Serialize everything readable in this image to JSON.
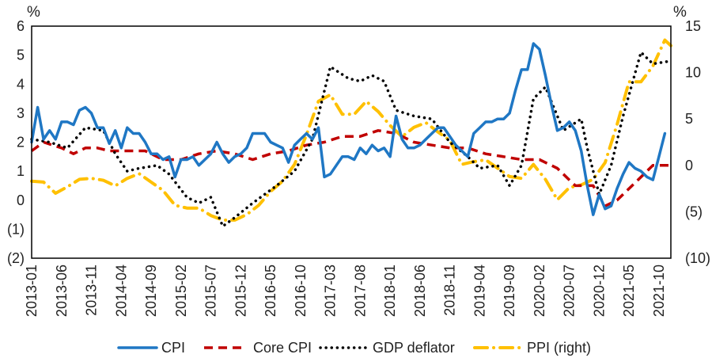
{
  "chart_data": {
    "type": "line",
    "left_unit": "%",
    "right_unit": "%",
    "y_left": {
      "range": [
        -2,
        6
      ],
      "ticks": [
        {
          "value": -2,
          "label": "(2)",
          "color": "#cc0000"
        },
        {
          "value": -1,
          "label": "(1)",
          "color": "#cc0000"
        },
        {
          "value": 0,
          "label": "0",
          "color": "#222222"
        },
        {
          "value": 1,
          "label": "1",
          "color": "#222222"
        },
        {
          "value": 2,
          "label": "2",
          "color": "#222222"
        },
        {
          "value": 3,
          "label": "3",
          "color": "#222222"
        },
        {
          "value": 4,
          "label": "4",
          "color": "#222222"
        },
        {
          "value": 5,
          "label": "5",
          "color": "#222222"
        },
        {
          "value": 6,
          "label": "6",
          "color": "#222222"
        }
      ]
    },
    "y_right": {
      "range": [
        -10,
        15
      ],
      "ticks": [
        {
          "value": -10,
          "label": "(10)",
          "color": "#cc0000"
        },
        {
          "value": -5,
          "label": "(5)",
          "color": "#cc0000"
        },
        {
          "value": 0,
          "label": "0",
          "color": "#222222"
        },
        {
          "value": 5,
          "label": "5",
          "color": "#222222"
        },
        {
          "value": 10,
          "label": "10",
          "color": "#222222"
        },
        {
          "value": 15,
          "label": "15",
          "color": "#222222"
        }
      ]
    },
    "x_range": [
      "2013-01",
      "2021-12"
    ],
    "x_tick_labels": [
      "2013-01",
      "2013-06",
      "2013-11",
      "2014-04",
      "2014-09",
      "2015-02",
      "2015-07",
      "2015-12",
      "2016-05",
      "2016-10",
      "2017-03",
      "2017-08",
      "2018-01",
      "2018-06",
      "2018-11",
      "2019-04",
      "2019-09",
      "2020-02",
      "2020-07",
      "2020-12",
      "2021-05",
      "2021-10"
    ],
    "grid": false,
    "legend_position": "bottom",
    "series": [
      {
        "name": "CPI",
        "axis": "left",
        "color": "#1f77c4",
        "style": "solid",
        "points": [
          [
            "2013-01",
            2.0
          ],
          [
            "2013-02",
            3.2
          ],
          [
            "2013-03",
            2.1
          ],
          [
            "2013-04",
            2.4
          ],
          [
            "2013-05",
            2.1
          ],
          [
            "2013-06",
            2.7
          ],
          [
            "2013-07",
            2.7
          ],
          [
            "2013-08",
            2.6
          ],
          [
            "2013-09",
            3.1
          ],
          [
            "2013-10",
            3.2
          ],
          [
            "2013-11",
            3.0
          ],
          [
            "2013-12",
            2.5
          ],
          [
            "2014-01",
            2.5
          ],
          [
            "2014-02",
            1.95
          ],
          [
            "2014-03",
            2.4
          ],
          [
            "2014-04",
            1.8
          ],
          [
            "2014-05",
            2.5
          ],
          [
            "2014-06",
            2.3
          ],
          [
            "2014-07",
            2.3
          ],
          [
            "2014-08",
            2.0
          ],
          [
            "2014-09",
            1.6
          ],
          [
            "2014-10",
            1.6
          ],
          [
            "2014-11",
            1.4
          ],
          [
            "2014-12",
            1.5
          ],
          [
            "2015-01",
            0.8
          ],
          [
            "2015-02",
            1.4
          ],
          [
            "2015-03",
            1.4
          ],
          [
            "2015-04",
            1.5
          ],
          [
            "2015-05",
            1.2
          ],
          [
            "2015-06",
            1.4
          ],
          [
            "2015-07",
            1.6
          ],
          [
            "2015-08",
            2.0
          ],
          [
            "2015-09",
            1.6
          ],
          [
            "2015-10",
            1.3
          ],
          [
            "2015-11",
            1.5
          ],
          [
            "2015-12",
            1.6
          ],
          [
            "2016-01",
            1.8
          ],
          [
            "2016-02",
            2.3
          ],
          [
            "2016-03",
            2.3
          ],
          [
            "2016-04",
            2.3
          ],
          [
            "2016-05",
            2.0
          ],
          [
            "2016-06",
            1.9
          ],
          [
            "2016-07",
            1.8
          ],
          [
            "2016-08",
            1.3
          ],
          [
            "2016-09",
            1.9
          ],
          [
            "2016-10",
            2.1
          ],
          [
            "2016-11",
            2.3
          ],
          [
            "2016-12",
            2.1
          ],
          [
            "2017-01",
            2.5
          ],
          [
            "2017-02",
            0.8
          ],
          [
            "2017-03",
            0.9
          ],
          [
            "2017-04",
            1.2
          ],
          [
            "2017-05",
            1.5
          ],
          [
            "2017-06",
            1.5
          ],
          [
            "2017-07",
            1.4
          ],
          [
            "2017-08",
            1.8
          ],
          [
            "2017-09",
            1.6
          ],
          [
            "2017-10",
            1.9
          ],
          [
            "2017-11",
            1.7
          ],
          [
            "2017-12",
            1.8
          ],
          [
            "2018-01",
            1.5
          ],
          [
            "2018-02",
            2.9
          ],
          [
            "2018-03",
            2.1
          ],
          [
            "2018-04",
            1.8
          ],
          [
            "2018-05",
            1.8
          ],
          [
            "2018-06",
            1.9
          ],
          [
            "2018-07",
            2.1
          ],
          [
            "2018-08",
            2.3
          ],
          [
            "2018-09",
            2.5
          ],
          [
            "2018-10",
            2.5
          ],
          [
            "2018-11",
            2.2
          ],
          [
            "2018-12",
            1.9
          ],
          [
            "2019-01",
            1.7
          ],
          [
            "2019-02",
            1.5
          ],
          [
            "2019-03",
            2.3
          ],
          [
            "2019-04",
            2.5
          ],
          [
            "2019-05",
            2.7
          ],
          [
            "2019-06",
            2.7
          ],
          [
            "2019-07",
            2.8
          ],
          [
            "2019-08",
            2.8
          ],
          [
            "2019-09",
            3.0
          ],
          [
            "2019-10",
            3.8
          ],
          [
            "2019-11",
            4.5
          ],
          [
            "2019-12",
            4.5
          ],
          [
            "2020-01",
            5.4
          ],
          [
            "2020-02",
            5.2
          ],
          [
            "2020-03",
            4.3
          ],
          [
            "2020-04",
            3.3
          ],
          [
            "2020-05",
            2.4
          ],
          [
            "2020-06",
            2.5
          ],
          [
            "2020-07",
            2.7
          ],
          [
            "2020-08",
            2.4
          ],
          [
            "2020-09",
            1.7
          ],
          [
            "2020-10",
            0.5
          ],
          [
            "2020-11",
            -0.5
          ],
          [
            "2020-12",
            0.2
          ],
          [
            "2021-01",
            -0.3
          ],
          [
            "2021-02",
            -0.2
          ],
          [
            "2021-03",
            0.4
          ],
          [
            "2021-04",
            0.9
          ],
          [
            "2021-05",
            1.3
          ],
          [
            "2021-06",
            1.1
          ],
          [
            "2021-07",
            1.0
          ],
          [
            "2021-08",
            0.8
          ],
          [
            "2021-09",
            0.7
          ],
          [
            "2021-10",
            1.5
          ],
          [
            "2021-11",
            2.3
          ]
        ]
      },
      {
        "name": "Core CPI",
        "axis": "left",
        "color": "#c00000",
        "style": "dashed",
        "points": [
          [
            "2013-01",
            1.7
          ],
          [
            "2013-03",
            2.0
          ],
          [
            "2013-06",
            1.8
          ],
          [
            "2013-08",
            1.6
          ],
          [
            "2013-10",
            1.8
          ],
          [
            "2013-12",
            1.8
          ],
          [
            "2014-02",
            1.7
          ],
          [
            "2014-05",
            1.7
          ],
          [
            "2014-08",
            1.7
          ],
          [
            "2014-11",
            1.4
          ],
          [
            "2015-02",
            1.4
          ],
          [
            "2015-05",
            1.6
          ],
          [
            "2015-08",
            1.7
          ],
          [
            "2015-11",
            1.6
          ],
          [
            "2016-02",
            1.4
          ],
          [
            "2016-05",
            1.6
          ],
          [
            "2016-08",
            1.7
          ],
          [
            "2016-11",
            1.9
          ],
          [
            "2017-02",
            2.0
          ],
          [
            "2017-05",
            2.2
          ],
          [
            "2017-08",
            2.2
          ],
          [
            "2017-11",
            2.4
          ],
          [
            "2018-02",
            2.3
          ],
          [
            "2018-05",
            2.0
          ],
          [
            "2018-08",
            1.9
          ],
          [
            "2018-11",
            1.8
          ],
          [
            "2019-02",
            1.8
          ],
          [
            "2019-05",
            1.6
          ],
          [
            "2019-08",
            1.5
          ],
          [
            "2019-11",
            1.4
          ],
          [
            "2020-02",
            1.4
          ],
          [
            "2020-05",
            1.1
          ],
          [
            "2020-08",
            0.5
          ],
          [
            "2020-11",
            0.5
          ],
          [
            "2021-01",
            -0.2
          ],
          [
            "2021-03",
            0.0
          ],
          [
            "2021-06",
            0.6
          ],
          [
            "2021-09",
            1.2
          ],
          [
            "2021-12",
            1.2
          ]
        ]
      },
      {
        "name": "GDP deflator",
        "axis": "left",
        "color": "#000000",
        "style": "dotted",
        "points": [
          [
            "2013-01",
            2.1
          ],
          [
            "2013-04",
            2.0
          ],
          [
            "2013-07",
            1.8
          ],
          [
            "2013-10",
            2.5
          ],
          [
            "2014-01",
            2.4
          ],
          [
            "2014-03",
            1.6
          ],
          [
            "2014-05",
            1.0
          ],
          [
            "2014-07",
            1.1
          ],
          [
            "2014-10",
            1.2
          ],
          [
            "2014-12",
            0.9
          ],
          [
            "2015-03",
            0.1
          ],
          [
            "2015-05",
            -0.1
          ],
          [
            "2015-07",
            0.1
          ],
          [
            "2015-09",
            -0.9
          ],
          [
            "2015-11",
            -0.6
          ],
          [
            "2016-02",
            -0.1
          ],
          [
            "2016-06",
            0.5
          ],
          [
            "2016-09",
            1.0
          ],
          [
            "2016-12",
            2.1
          ],
          [
            "2017-03",
            4.6
          ],
          [
            "2017-06",
            4.2
          ],
          [
            "2017-08",
            4.1
          ],
          [
            "2017-10",
            4.3
          ],
          [
            "2017-12",
            4.1
          ],
          [
            "2018-02",
            3.1
          ],
          [
            "2018-05",
            2.9
          ],
          [
            "2018-08",
            2.8
          ],
          [
            "2018-11",
            2.0
          ],
          [
            "2019-02",
            1.5
          ],
          [
            "2019-04",
            1.1
          ],
          [
            "2019-07",
            1.2
          ],
          [
            "2019-09",
            0.5
          ],
          [
            "2019-11",
            1.2
          ],
          [
            "2020-01",
            3.5
          ],
          [
            "2020-03",
            3.9
          ],
          [
            "2020-06",
            2.4
          ],
          [
            "2020-09",
            2.8
          ],
          [
            "2020-10",
            1.8
          ],
          [
            "2020-12",
            0.2
          ],
          [
            "2021-02",
            1.2
          ],
          [
            "2021-04",
            2.9
          ],
          [
            "2021-07",
            5.1
          ],
          [
            "2021-09",
            4.7
          ],
          [
            "2021-12",
            4.8
          ]
        ]
      },
      {
        "name": "PPI (right)",
        "axis": "right",
        "color": "#ffc000",
        "style": "dashdot",
        "points": [
          [
            "2013-01",
            -1.7
          ],
          [
            "2013-03",
            -1.8
          ],
          [
            "2013-05",
            -3.0
          ],
          [
            "2013-07",
            -2.3
          ],
          [
            "2013-09",
            -1.5
          ],
          [
            "2013-11",
            -1.4
          ],
          [
            "2014-01",
            -1.6
          ],
          [
            "2014-03",
            -2.2
          ],
          [
            "2014-05",
            -1.4
          ],
          [
            "2014-07",
            -0.9
          ],
          [
            "2014-09",
            -1.8
          ],
          [
            "2014-11",
            -2.7
          ],
          [
            "2015-01",
            -4.3
          ],
          [
            "2015-03",
            -4.6
          ],
          [
            "2015-05",
            -4.6
          ],
          [
            "2015-07",
            -5.4
          ],
          [
            "2015-09",
            -5.9
          ],
          [
            "2015-11",
            -5.9
          ],
          [
            "2016-01",
            -5.3
          ],
          [
            "2016-03",
            -4.3
          ],
          [
            "2016-05",
            -2.8
          ],
          [
            "2016-07",
            -1.7
          ],
          [
            "2016-09",
            0.1
          ],
          [
            "2016-11",
            3.3
          ],
          [
            "2017-01",
            6.9
          ],
          [
            "2017-03",
            7.6
          ],
          [
            "2017-05",
            5.5
          ],
          [
            "2017-07",
            5.5
          ],
          [
            "2017-09",
            6.9
          ],
          [
            "2017-11",
            5.8
          ],
          [
            "2018-01",
            4.3
          ],
          [
            "2018-03",
            3.1
          ],
          [
            "2018-05",
            4.1
          ],
          [
            "2018-07",
            4.6
          ],
          [
            "2018-09",
            3.6
          ],
          [
            "2018-11",
            2.7
          ],
          [
            "2019-01",
            0.1
          ],
          [
            "2019-03",
            0.4
          ],
          [
            "2019-05",
            0.6
          ],
          [
            "2019-07",
            -0.3
          ],
          [
            "2019-09",
            -1.2
          ],
          [
            "2019-11",
            -1.4
          ],
          [
            "2020-01",
            0.1
          ],
          [
            "2020-03",
            -1.5
          ],
          [
            "2020-05",
            -3.7
          ],
          [
            "2020-07",
            -2.4
          ],
          [
            "2020-09",
            -2.1
          ],
          [
            "2020-11",
            -1.5
          ],
          [
            "2021-01",
            0.3
          ],
          [
            "2021-03",
            4.4
          ],
          [
            "2021-05",
            9.0
          ],
          [
            "2021-07",
            9.0
          ],
          [
            "2021-09",
            10.7
          ],
          [
            "2021-11",
            13.5
          ],
          [
            "2021-12",
            12.9
          ]
        ]
      }
    ]
  }
}
